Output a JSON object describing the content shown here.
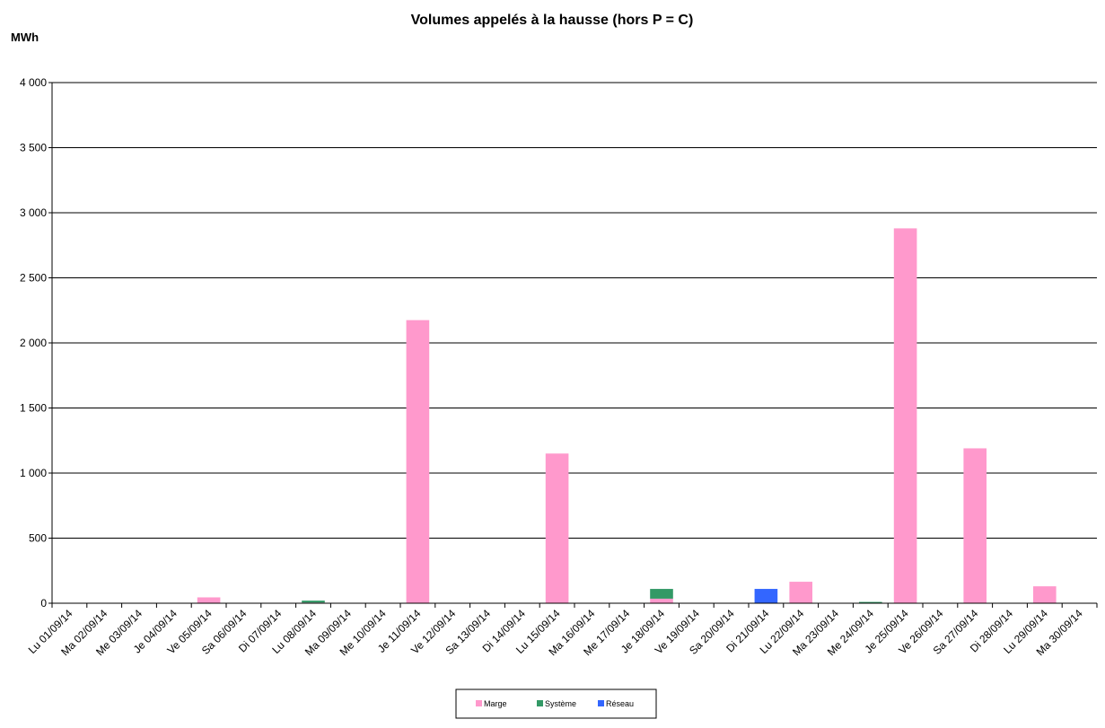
{
  "chart_data": {
    "type": "stacked_bar",
    "title": "Volumes appelés à la hausse (hors P = C)",
    "y_label": "MWh",
    "categories": [
      "Lu 01/09/14",
      "Ma 02/09/14",
      "Me 03/09/14",
      "Je 04/09/14",
      "Ve 05/09/14",
      "Sa 06/09/14",
      "Di 07/09/14",
      "Lu 08/09/14",
      "Ma 09/09/14",
      "Me 10/09/14",
      "Je 11/09/14",
      "Ve 12/09/14",
      "Sa 13/09/14",
      "Di 14/09/14",
      "Lu 15/09/14",
      "Ma 16/09/14",
      "Me 17/09/14",
      "Je 18/09/14",
      "Ve 19/09/14",
      "Sa 20/09/14",
      "Di 21/09/14",
      "Lu 22/09/14",
      "Ma 23/09/14",
      "Me 24/09/14",
      "Je 25/09/14",
      "Ve 26/09/14",
      "Sa 27/09/14",
      "Di 28/09/14",
      "Lu 29/09/14",
      "Ma 30/09/14"
    ],
    "series": [
      {
        "name": "Marge",
        "color": "#ff99cc",
        "values": [
          0,
          0,
          0,
          0,
          45,
          0,
          0,
          5,
          0,
          0,
          2175,
          0,
          0,
          0,
          1150,
          0,
          0,
          35,
          0,
          0,
          0,
          165,
          0,
          0,
          2880,
          0,
          1190,
          0,
          130,
          0
        ]
      },
      {
        "name": "Système",
        "color": "#339966",
        "values": [
          0,
          0,
          0,
          0,
          0,
          0,
          0,
          15,
          0,
          0,
          0,
          0,
          0,
          0,
          0,
          0,
          0,
          75,
          0,
          0,
          0,
          0,
          0,
          10,
          0,
          0,
          0,
          0,
          0,
          0
        ]
      },
      {
        "name": "Réseau",
        "color": "#3366ff",
        "values": [
          0,
          0,
          0,
          0,
          0,
          0,
          0,
          0,
          0,
          0,
          0,
          0,
          0,
          0,
          0,
          0,
          0,
          0,
          0,
          0,
          110,
          0,
          0,
          0,
          0,
          0,
          0,
          0,
          0,
          0
        ]
      }
    ],
    "ylim": [
      0,
      4000
    ],
    "yticks": [
      0,
      500,
      {
        "value": 1000,
        "label": "1 000"
      },
      {
        "value": 1500,
        "label": "1 500"
      },
      {
        "value": 2000,
        "label": "2 000"
      },
      {
        "value": 2500,
        "label": "2 500"
      },
      {
        "value": 3000,
        "label": "3 000"
      },
      {
        "value": 3500,
        "label": "3 500"
      },
      {
        "value": 4000,
        "label": "4 000"
      }
    ],
    "grid": true,
    "legend": "bottom"
  }
}
